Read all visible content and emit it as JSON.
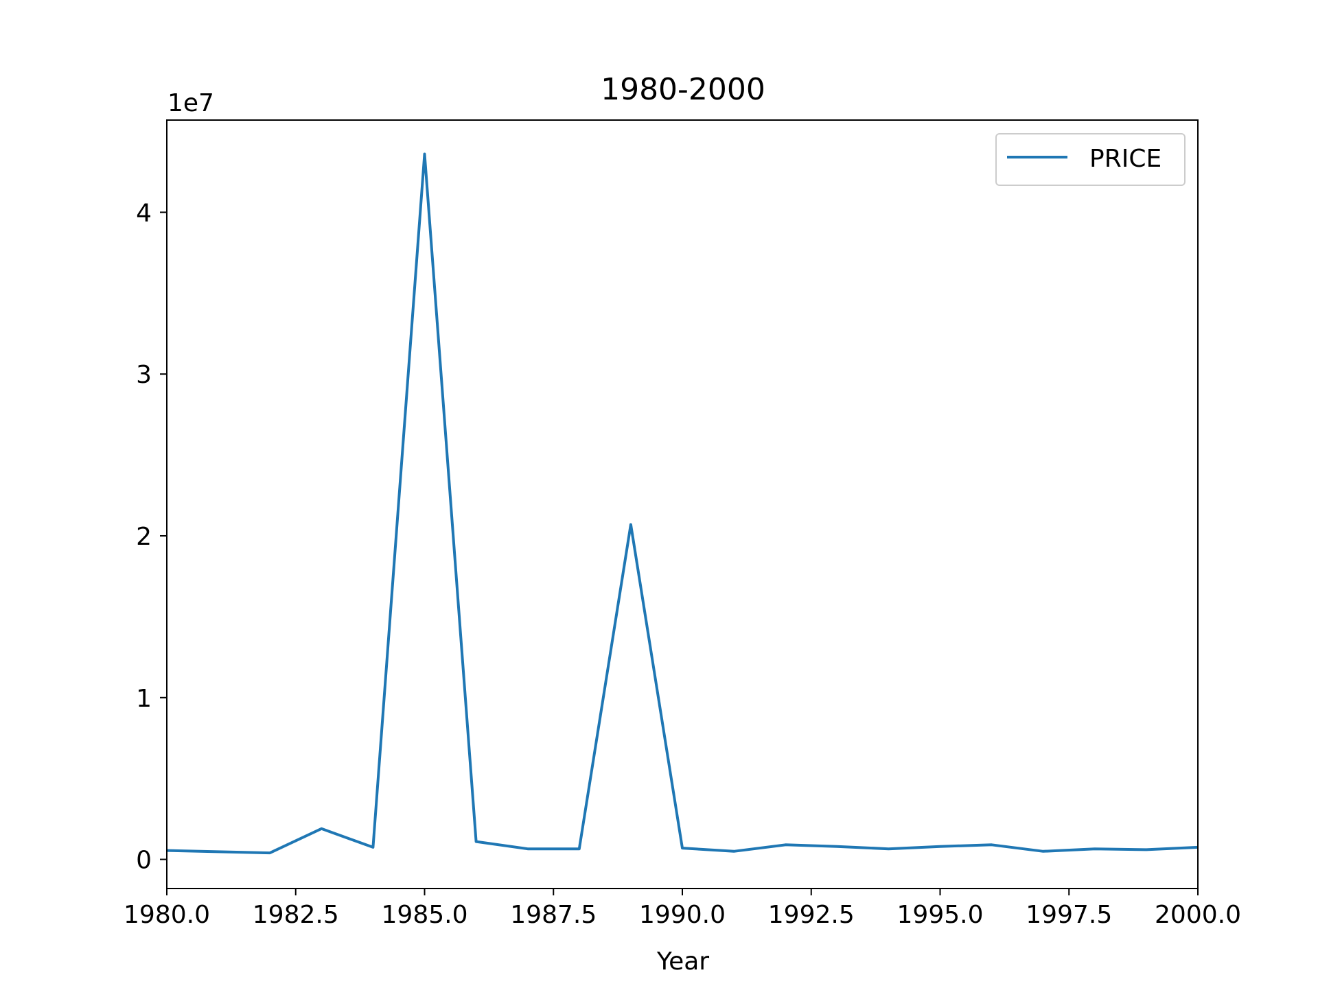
{
  "chart_data": {
    "type": "line",
    "title": "1980-2000",
    "xlabel": "Year",
    "ylabel": "",
    "y_offset_label": "1e7",
    "xlim": [
      1980,
      2000
    ],
    "ylim": [
      -1800000,
      45700000
    ],
    "xticks": [
      1980.0,
      1982.5,
      1985.0,
      1987.5,
      1990.0,
      1992.5,
      1995.0,
      1997.5,
      2000.0
    ],
    "xtick_labels": [
      "1980.0",
      "1982.5",
      "1985.0",
      "1987.5",
      "1990.0",
      "1992.5",
      "1995.0",
      "1997.5",
      "2000.0"
    ],
    "yticks": [
      0,
      10000000,
      20000000,
      30000000,
      40000000
    ],
    "ytick_labels": [
      "0",
      "1",
      "2",
      "3",
      "4"
    ],
    "grid": false,
    "legend_position": "top-right",
    "colors": {
      "series": "#1f77b4",
      "axes": "#000000",
      "legend_border": "#cccccc"
    },
    "x": [
      1980,
      1982,
      1983,
      1984,
      1985,
      1986,
      1987,
      1988,
      1989,
      1990,
      1991,
      1992,
      1993,
      1994,
      1995,
      1996,
      1997,
      1998,
      1999,
      2000
    ],
    "series": [
      {
        "name": "PRICE",
        "values": [
          550000,
          400000,
          1900000,
          750000,
          43600000,
          1100000,
          650000,
          650000,
          20700000,
          700000,
          500000,
          900000,
          800000,
          650000,
          800000,
          900000,
          500000,
          650000,
          600000,
          750000
        ]
      }
    ]
  }
}
